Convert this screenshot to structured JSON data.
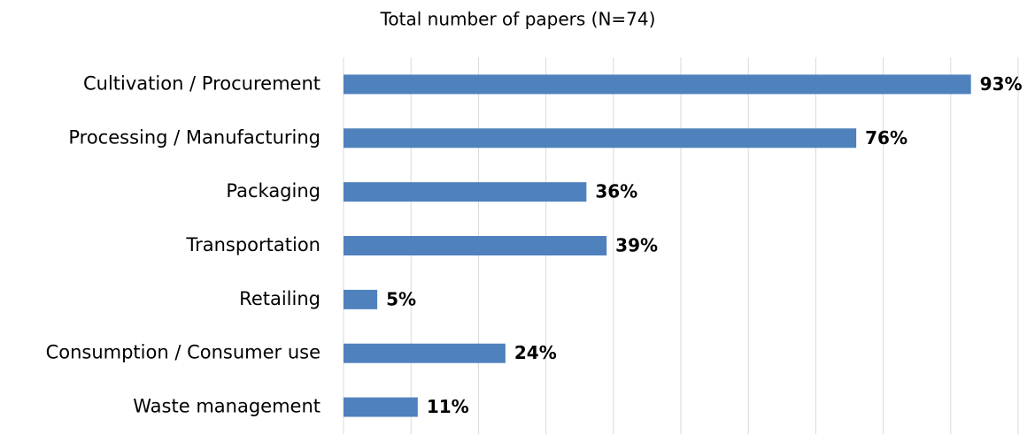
{
  "chart_data": {
    "type": "barh",
    "title": "Total number of papers (N=74)",
    "categories": [
      "Cultivation / Procurement",
      "Processing / Manufacturing",
      "Packaging",
      "Transportation",
      "Retailing",
      "Consumption / Consumer use",
      "Waste management"
    ],
    "values": [
      93,
      76,
      36,
      39,
      5,
      24,
      11
    ],
    "value_labels": [
      "93%",
      "76%",
      "36%",
      "39%",
      "5%",
      "24%",
      "11%"
    ],
    "color": "#4f81bd",
    "xlim": [
      0,
      100
    ],
    "xticks": [
      0,
      10,
      20,
      30,
      40,
      50,
      60,
      70,
      80,
      90,
      100
    ],
    "grid": true
  }
}
